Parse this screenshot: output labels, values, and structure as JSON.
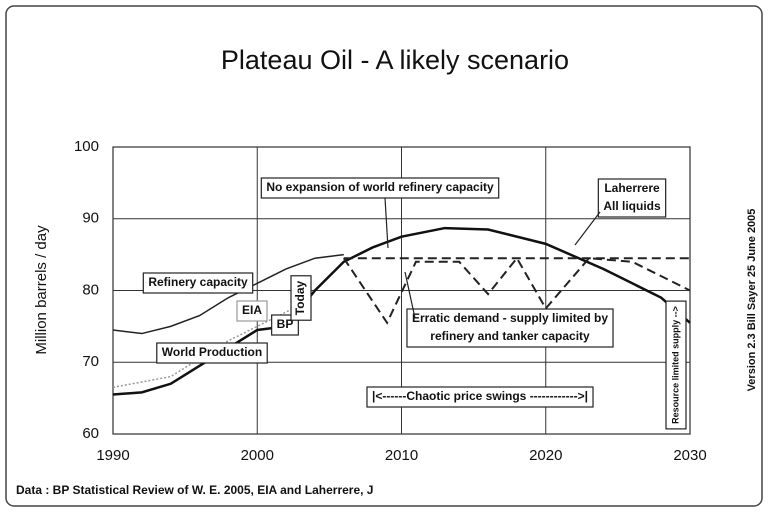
{
  "chart_data": {
    "type": "line",
    "title": "Plateau  Oil - A likely scenario",
    "y_label": "Million barrels / day",
    "footer": "Data : BP Statistical Review of W. E. 2005, EIA and Laherrere, J",
    "version": "Version 2.3  Bill Sayer  25 June 2005",
    "xlim": [
      1990,
      2030
    ],
    "xticks": [
      1990,
      2000,
      2010,
      2020,
      2030
    ],
    "ylim": [
      60,
      100
    ],
    "yticks": [
      60,
      70,
      80,
      90,
      100
    ],
    "grid": true,
    "series": [
      {
        "color": "#111111",
        "dash": "none",
        "width": 2.5,
        "x": [
          1990,
          1992,
          1994,
          1996,
          1998,
          2000,
          2002,
          2004,
          2006,
          2008,
          2010,
          2013,
          2016,
          2020,
          2024,
          2028,
          2030
        ],
        "values": [
          65.5,
          65.8,
          67,
          69.5,
          72,
          74.5,
          75,
          80,
          84,
          86,
          87.5,
          88.7,
          88.5,
          86.5,
          83,
          79,
          75.5
        ]
      },
      {
        "color": "#222222",
        "dash": "none",
        "width": 1.5,
        "x": [
          1990,
          1992,
          1994,
          1996,
          1998,
          2000,
          2002,
          2004,
          2006
        ],
        "values": [
          74.5,
          74,
          75,
          76.5,
          79,
          81,
          83,
          84.5,
          85
        ]
      },
      {
        "color": "#222222",
        "dash": "9 5",
        "width": 2,
        "x": [
          2006,
          2030
        ],
        "values": [
          84.5,
          84.5
        ]
      },
      {
        "color": "#222222",
        "dash": "9 5",
        "width": 2,
        "x": [
          2006,
          2009,
          2011,
          2014,
          2016,
          2018,
          2020,
          2023,
          2026,
          2030
        ],
        "values": [
          84.5,
          75.5,
          84,
          84,
          79.5,
          84.5,
          77.5,
          84.5,
          84,
          80
        ]
      },
      {
        "color": "#999999",
        "dash": "2 2",
        "width": 1.5,
        "x": [
          1990,
          1994,
          1998,
          2000,
          2003
        ],
        "values": [
          66.5,
          68,
          73,
          75,
          78
        ]
      }
    ],
    "annotations": [
      [
        "No expansion of world refinery capacity"
      ],
      [
        "Laherrere",
        "All liquids"
      ],
      [
        "Refinery capacity"
      ],
      [
        "EIA"
      ],
      [
        "BP"
      ],
      [
        "World Production"
      ],
      [
        "Erratic demand - supply limited by",
        "refinery and tanker capacity"
      ],
      [
        "|<------Chaotic price swings ------------>|"
      ],
      [
        "Today"
      ],
      [
        "Resource limited supply -->"
      ]
    ]
  }
}
